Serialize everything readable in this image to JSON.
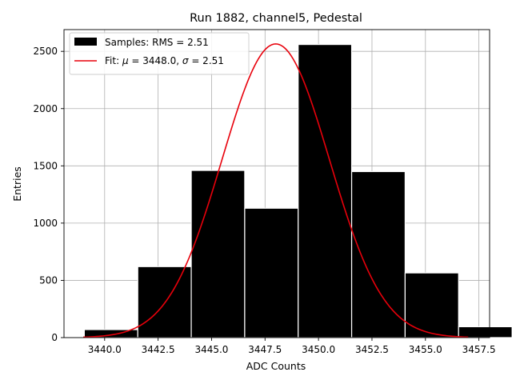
{
  "chart_data": {
    "type": "bar",
    "title": "Run 1882, channel5, Pedestal",
    "xlabel": "ADC Counts",
    "ylabel": "Entries",
    "xlim": [
      3438.1,
      3458.0
    ],
    "ylim": [
      0,
      2690
    ],
    "xticks": [
      3440.0,
      3442.5,
      3445.0,
      3447.5,
      3450.0,
      3452.5,
      3455.0,
      3457.5
    ],
    "xtick_labels": [
      "3440.0",
      "3442.5",
      "3445.0",
      "3447.5",
      "3450.0",
      "3452.5",
      "3455.0",
      "3457.5"
    ],
    "yticks": [
      0,
      500,
      1000,
      1500,
      2000,
      2500
    ],
    "ytick_labels": [
      "0",
      "500",
      "1000",
      "1500",
      "2000",
      "2500"
    ],
    "grid": true,
    "legend_position": "top-left",
    "bar_color": "#000000",
    "fit_color": "#e8000b",
    "bins": [
      {
        "left": 3441.0,
        "right": 3443.5,
        "count": 70
      },
      {
        "left": 3443.5,
        "right": 3446.0,
        "count": 620
      },
      {
        "left": 3446.0,
        "right": 3448.5,
        "count": 1460
      },
      {
        "left": 3448.5,
        "right": 3451.0,
        "count": 1130
      },
      {
        "left": 3451.0,
        "right": 3453.5,
        "count": 2560
      },
      {
        "left": 3453.5,
        "right": 3456.0,
        "count": 1450
      },
      {
        "left": 3456.0,
        "right": 3458.5,
        "count": 565
      },
      {
        "left": 3458.5,
        "right": 3461.0,
        "count": 95
      }
    ],
    "fit": {
      "mu": 3448.0,
      "sigma": 2.51,
      "amplitude": 2565,
      "x_range": [
        3439.0,
        3457.0
      ]
    },
    "legend": [
      {
        "label": "Samples: RMS = 2.51",
        "kind": "patch"
      },
      {
        "label_prefix": "Fit: ",
        "mu_symbol": "μ",
        "mu_text": " = 3448.0, ",
        "sigma_symbol": "σ",
        "sigma_text": " = 2.51",
        "kind": "line"
      }
    ]
  }
}
